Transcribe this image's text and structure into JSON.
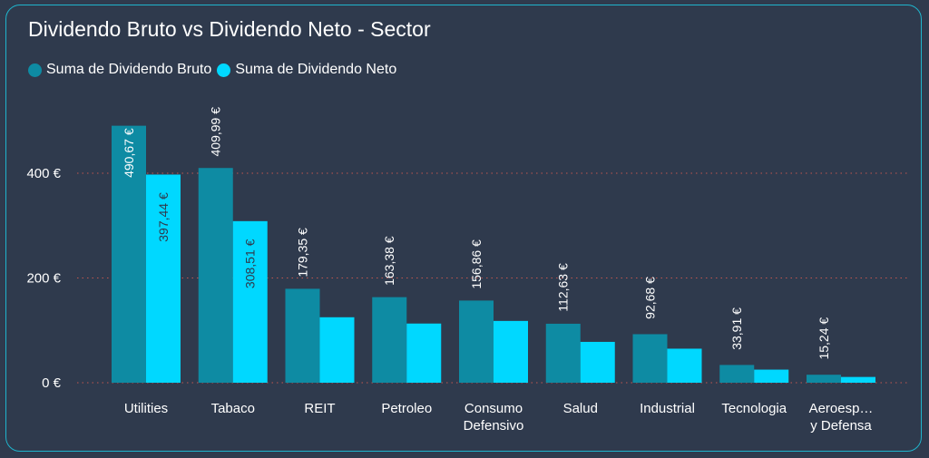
{
  "chart_data": {
    "type": "bar",
    "title": "Dividendo Bruto vs Dividendo Neto - Sector",
    "xlabel": "",
    "ylabel": "",
    "ylim": [
      0,
      540
    ],
    "yticks": [
      0,
      200,
      400
    ],
    "ytick_labels": [
      "0 €",
      "200 €",
      "400 €"
    ],
    "grid": true,
    "legend_position": "top-left",
    "categories": [
      [
        "Utilities"
      ],
      [
        "Tabaco"
      ],
      [
        "REIT"
      ],
      [
        "Petroleo"
      ],
      [
        "Consumo",
        "Defensivo"
      ],
      [
        "Salud"
      ],
      [
        "Industrial"
      ],
      [
        "Tecnologia"
      ],
      [
        "Aeroesp…",
        "y Defensa"
      ]
    ],
    "series": [
      {
        "name": "Suma de Dividendo Bruto",
        "color": "#0e8ba3",
        "values": [
          490.67,
          409.99,
          179.35,
          163.38,
          156.86,
          112.63,
          92.68,
          33.91,
          15.24
        ],
        "labels": [
          "490,67 €",
          "409,99 €",
          "179,35 €",
          "163,38 €",
          "156,86 €",
          "112,63 €",
          "92,68 €",
          "33,91 €",
          "15,24 €"
        ]
      },
      {
        "name": "Suma de Dividendo Neto",
        "color": "#00d8ff",
        "values": [
          397.44,
          308.51,
          125,
          113,
          118,
          78,
          65,
          25,
          11
        ],
        "labels": [
          "397,44 €",
          "308,51 €"
        ]
      }
    ]
  }
}
